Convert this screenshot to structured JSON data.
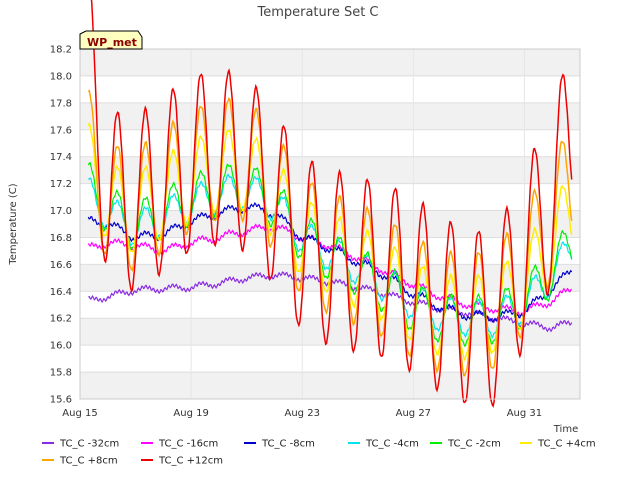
{
  "chart_data": {
    "type": "line",
    "title": "Temperature Set C",
    "xlabel": "Time",
    "ylabel": "Temperature (C)",
    "badge": "WP_met",
    "ylim": [
      15.6,
      18.2
    ],
    "yticks": [
      15.6,
      15.8,
      16.0,
      16.2,
      16.4,
      16.6,
      16.8,
      17.0,
      17.2,
      17.4,
      17.6,
      17.8,
      18.0,
      18.2
    ],
    "xlim": [
      "Aug 15",
      "Sep 2"
    ],
    "xticks": [
      {
        "day": 15,
        "label": "Aug 15"
      },
      {
        "day": 19,
        "label": "Aug 19"
      },
      {
        "day": 23,
        "label": "Aug 23"
      },
      {
        "day": 27,
        "label": "Aug 27"
      },
      {
        "day": 31,
        "label": "Aug 31"
      }
    ],
    "grid": "alternating horizontal bands",
    "legend_placement": "bottom",
    "series": [
      {
        "name": "TC_C -32cm",
        "color": "#8a2be2",
        "days": [
          15.3,
          16.0,
          17.0,
          18.0,
          19.0,
          20.0,
          21.0,
          22.0,
          23.0,
          24.0,
          25.0,
          26.0,
          27.0,
          28.0,
          29.0,
          30.0,
          31.0,
          32.0,
          32.7
        ],
        "values": [
          16.33,
          16.36,
          16.41,
          16.42,
          16.43,
          16.46,
          16.5,
          16.52,
          16.5,
          16.47,
          16.43,
          16.38,
          16.32,
          16.27,
          16.24,
          16.2,
          16.16,
          16.13,
          16.17
        ],
        "ripple": 0.02
      },
      {
        "name": "TC_C -16cm",
        "color": "#ff00ff",
        "days": [
          15.3,
          16.0,
          17.0,
          18.0,
          19.0,
          20.0,
          21.0,
          22.0,
          23.0,
          24.0,
          25.0,
          26.0,
          27.0,
          28.0,
          29.0,
          30.0,
          31.0,
          32.0,
          32.7
        ],
        "values": [
          16.72,
          16.76,
          16.74,
          16.7,
          16.76,
          16.8,
          16.85,
          16.88,
          16.8,
          16.74,
          16.65,
          16.55,
          16.45,
          16.36,
          16.3,
          16.27,
          16.25,
          16.33,
          16.42
        ],
        "ripple": 0.025
      },
      {
        "name": "TC_C -8cm",
        "color": "#0000cd",
        "days": [
          15.3,
          16.0,
          17.0,
          18.0,
          19.0,
          20.0,
          21.0,
          22.0,
          23.0,
          24.0,
          25.0,
          26.0,
          27.0,
          28.0,
          29.0,
          30.0,
          31.0,
          32.0,
          32.7
        ],
        "values": [
          16.92,
          16.9,
          16.8,
          16.82,
          16.92,
          16.98,
          17.03,
          16.98,
          16.8,
          16.72,
          16.62,
          16.52,
          16.38,
          16.28,
          16.22,
          16.21,
          16.25,
          16.42,
          16.56
        ],
        "ripple": 0.03
      },
      {
        "name": "TC_C -4cm",
        "color": "#00e5ee",
        "days": [
          15.3,
          16.0,
          17.0,
          18.0,
          19.0,
          20.0,
          21.0,
          22.0,
          23.0,
          24.0,
          25.0,
          26.0,
          27.0,
          28.0,
          29.0,
          30.0,
          31.0,
          32.0,
          32.7
        ],
        "values": [
          17.12,
          16.98,
          16.86,
          16.95,
          17.05,
          17.12,
          17.15,
          17.05,
          16.8,
          16.68,
          16.58,
          16.45,
          16.32,
          16.23,
          16.2,
          16.2,
          16.3,
          16.52,
          16.72
        ],
        "ripple": 0.13
      },
      {
        "name": "TC_C -2cm",
        "color": "#00ee00",
        "days": [
          15.3,
          16.0,
          17.0,
          18.0,
          19.0,
          20.0,
          21.0,
          22.0,
          23.0,
          24.0,
          25.0,
          26.0,
          27.0,
          28.0,
          29.0,
          30.0,
          31.0,
          32.0,
          32.7
        ],
        "values": [
          17.18,
          17.0,
          16.88,
          16.98,
          17.08,
          17.15,
          17.18,
          17.05,
          16.8,
          16.66,
          16.55,
          16.42,
          16.28,
          16.2,
          16.18,
          16.2,
          16.32,
          16.55,
          16.76
        ],
        "ripple": 0.18
      },
      {
        "name": "TC_C +4cm",
        "color": "#ffee00",
        "days": [
          15.3,
          16.0,
          17.0,
          18.0,
          19.0,
          20.0,
          21.0,
          22.0,
          23.0,
          24.0,
          25.0,
          26.0,
          27.0,
          28.0,
          29.0,
          30.0,
          31.0,
          32.0,
          32.7
        ],
        "values": [
          17.35,
          17.05,
          16.98,
          17.1,
          17.22,
          17.3,
          17.3,
          17.1,
          16.8,
          16.68,
          16.58,
          16.48,
          16.32,
          16.22,
          16.2,
          16.25,
          16.45,
          16.75,
          17.0
        ],
        "ripple": 0.3
      },
      {
        "name": "TC_C +8cm",
        "color": "#ffa500",
        "days": [
          15.3,
          16.0,
          17.0,
          18.0,
          19.0,
          20.0,
          21.0,
          22.0,
          23.0,
          24.0,
          25.0,
          26.0,
          27.0,
          28.0,
          29.0,
          30.0,
          31.0,
          32.0,
          32.7
        ],
        "values": [
          17.45,
          17.05,
          17.0,
          17.15,
          17.3,
          17.38,
          17.38,
          17.15,
          16.8,
          16.68,
          16.6,
          16.5,
          16.35,
          16.25,
          16.22,
          16.28,
          16.55,
          16.95,
          17.18
        ],
        "ripple": 0.45
      },
      {
        "name": "TC_C +12cm",
        "color": "#ee0000",
        "days": [
          15.3,
          16.0,
          17.0,
          18.0,
          19.0,
          20.0,
          21.0,
          22.0,
          23.0,
          24.0,
          25.0,
          26.0,
          27.0,
          28.0,
          29.0,
          30.0,
          31.0,
          32.0,
          32.7
        ],
        "values": [
          18.13,
          17.1,
          17.05,
          17.2,
          17.35,
          17.4,
          17.35,
          17.1,
          16.75,
          16.65,
          16.6,
          16.55,
          16.45,
          16.3,
          16.2,
          16.2,
          16.65,
          17.1,
          17.6
        ],
        "ripple": 0.65
      }
    ]
  }
}
